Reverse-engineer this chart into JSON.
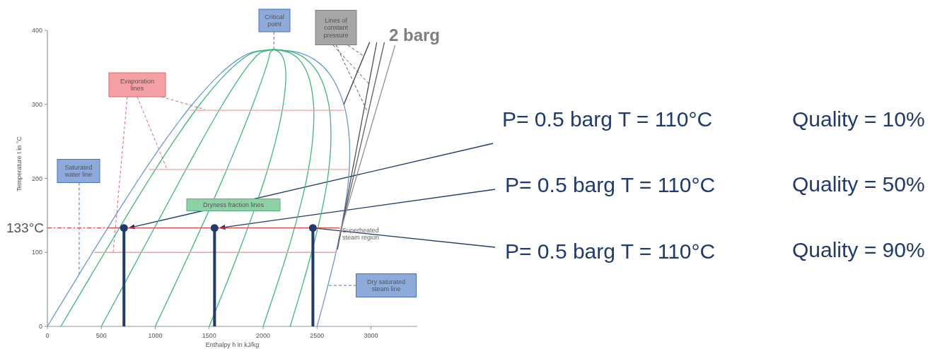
{
  "chart_data": {
    "type": "line",
    "xlabel": "Enthalpy h in kJ/kg",
    "ylabel": "Temperature t in °C",
    "xlim": [
      0,
      3430
    ],
    "ylim": [
      0,
      400
    ],
    "xticks": [
      0,
      500,
      1000,
      1500,
      2000,
      2500,
      3000
    ],
    "yticks": [
      0,
      100,
      200,
      300,
      400
    ],
    "series": [
      {
        "color": "#6a98d4",
        "x": [
          0,
          209,
          419,
          632,
          852,
          1085,
          1344,
          1594,
          1761,
          1890,
          2000,
          2100,
          2200,
          2330,
          2481,
          2622,
          2749,
          2801,
          2793,
          2746,
          2676,
          2592,
          2501
        ],
        "values": [
          0,
          50,
          100,
          150,
          200,
          250,
          300,
          340,
          360,
          370,
          373,
          374,
          373,
          370,
          360,
          340,
          300,
          250,
          200,
          150,
          100,
          50,
          0
        ]
      },
      {
        "color": "#3cb878",
        "x": [
          125,
          328,
          532,
          738,
          949,
          1171,
          1414,
          1645,
          1797,
          1912,
          2100
        ],
        "values": [
          0,
          50,
          100,
          150,
          200,
          250,
          300,
          340,
          360,
          370,
          374
        ]
      },
      {
        "color": "#3cb878",
        "x": [
          500,
          686,
          870,
          1055,
          1240,
          1428,
          1625,
          1800,
          1905,
          1978,
          2100
        ],
        "values": [
          0,
          50,
          100,
          150,
          200,
          250,
          300,
          340,
          360,
          370,
          374
        ]
      },
      {
        "color": "#3cb878",
        "x": [
          1000,
          1162,
          1322,
          1478,
          1628,
          1771,
          1906,
          2005,
          2049,
          2066,
          2100
        ],
        "values": [
          0,
          50,
          100,
          150,
          200,
          250,
          300,
          340,
          360,
          370,
          374
        ]
      },
      {
        "color": "#3cb878",
        "x": [
          1501,
          1639,
          1773,
          1900,
          2017,
          2115,
          2187,
          2211,
          2193,
          2154,
          2100
        ],
        "values": [
          0,
          50,
          100,
          150,
          200,
          250,
          300,
          340,
          360,
          370,
          374
        ]
      },
      {
        "color": "#3cb878",
        "x": [
          2001,
          2115,
          2225,
          2323,
          2405,
          2458,
          2468,
          2416,
          2337,
          2242,
          2100
        ],
        "values": [
          0,
          50,
          100,
          150,
          200,
          250,
          300,
          340,
          360,
          370,
          374
        ]
      },
      {
        "color": "#3cb878",
        "x": [
          2251,
          2354,
          2450,
          2535,
          2599,
          2629,
          2609,
          2519,
          2409,
          2286,
          2100
        ],
        "values": [
          0,
          50,
          100,
          150,
          200,
          250,
          300,
          340,
          360,
          370,
          374
        ]
      },
      {
        "color": "#f4a0a0",
        "x": [
          1320,
          2750
        ],
        "values": [
          292,
          292
        ]
      },
      {
        "color": "#f4a0a0",
        "x": [
          940,
          2790
        ],
        "values": [
          212,
          212
        ]
      },
      {
        "color": "#f4a0a0",
        "x": [
          435,
          2680
        ],
        "values": [
          100,
          100
        ]
      },
      {
        "color": "#e8413c",
        "x": [
          590,
          2712
        ],
        "values": [
          133,
          133
        ]
      },
      {
        "color": "#e8413c",
        "x": [
          0,
          590
        ],
        "values": [
          133,
          133
        ],
        "line_style": "dashdot"
      },
      {
        "color": "#404040",
        "x": [
          2749,
          2988
        ],
        "values": [
          300,
          384
        ]
      },
      {
        "color": "#505050",
        "x": [
          2690,
          3054
        ],
        "values": [
          104,
          384
        ]
      },
      {
        "color": "#606060",
        "x": [
          2700,
          3125
        ],
        "values": [
          115,
          384
        ]
      },
      {
        "color": "#909090",
        "x": [
          2710,
          3224
        ],
        "values": [
          125,
          380
        ]
      },
      {
        "type": "lollipop",
        "color": "#1f3a6e",
        "marker": "circle",
        "x": [
          710,
          1550,
          2462
        ],
        "values": [
          133,
          133,
          133
        ]
      }
    ],
    "annotations": [
      {
        "text": "Critical point",
        "x": 2100,
        "y": 374
      },
      {
        "text": "Lines of constant pressure",
        "x": 2968,
        "y": 290
      },
      "2 barg",
      {
        "text": "Evaporation lines",
        "x": 1110,
        "y": 212
      },
      {
        "text": "Saturated water line",
        "x": 295,
        "y": 69
      },
      "Dryness fraction lines",
      "Superheated steam region",
      "Dry saturated steam line",
      {
        "text": "P= 0.5 barg T = 110°C",
        "x": 710,
        "y": 133
      },
      {
        "text": "P= 0.5 barg T = 110°C",
        "x": 1550,
        "y": 133
      },
      {
        "text": "P= 0.5 barg T = 110°C",
        "x": 2462,
        "y": 133
      },
      "Quality = 10%",
      "Quality = 50%",
      "Quality = 90%",
      {
        "text": "133°C",
        "x": 0,
        "y": 133
      }
    ]
  }
}
